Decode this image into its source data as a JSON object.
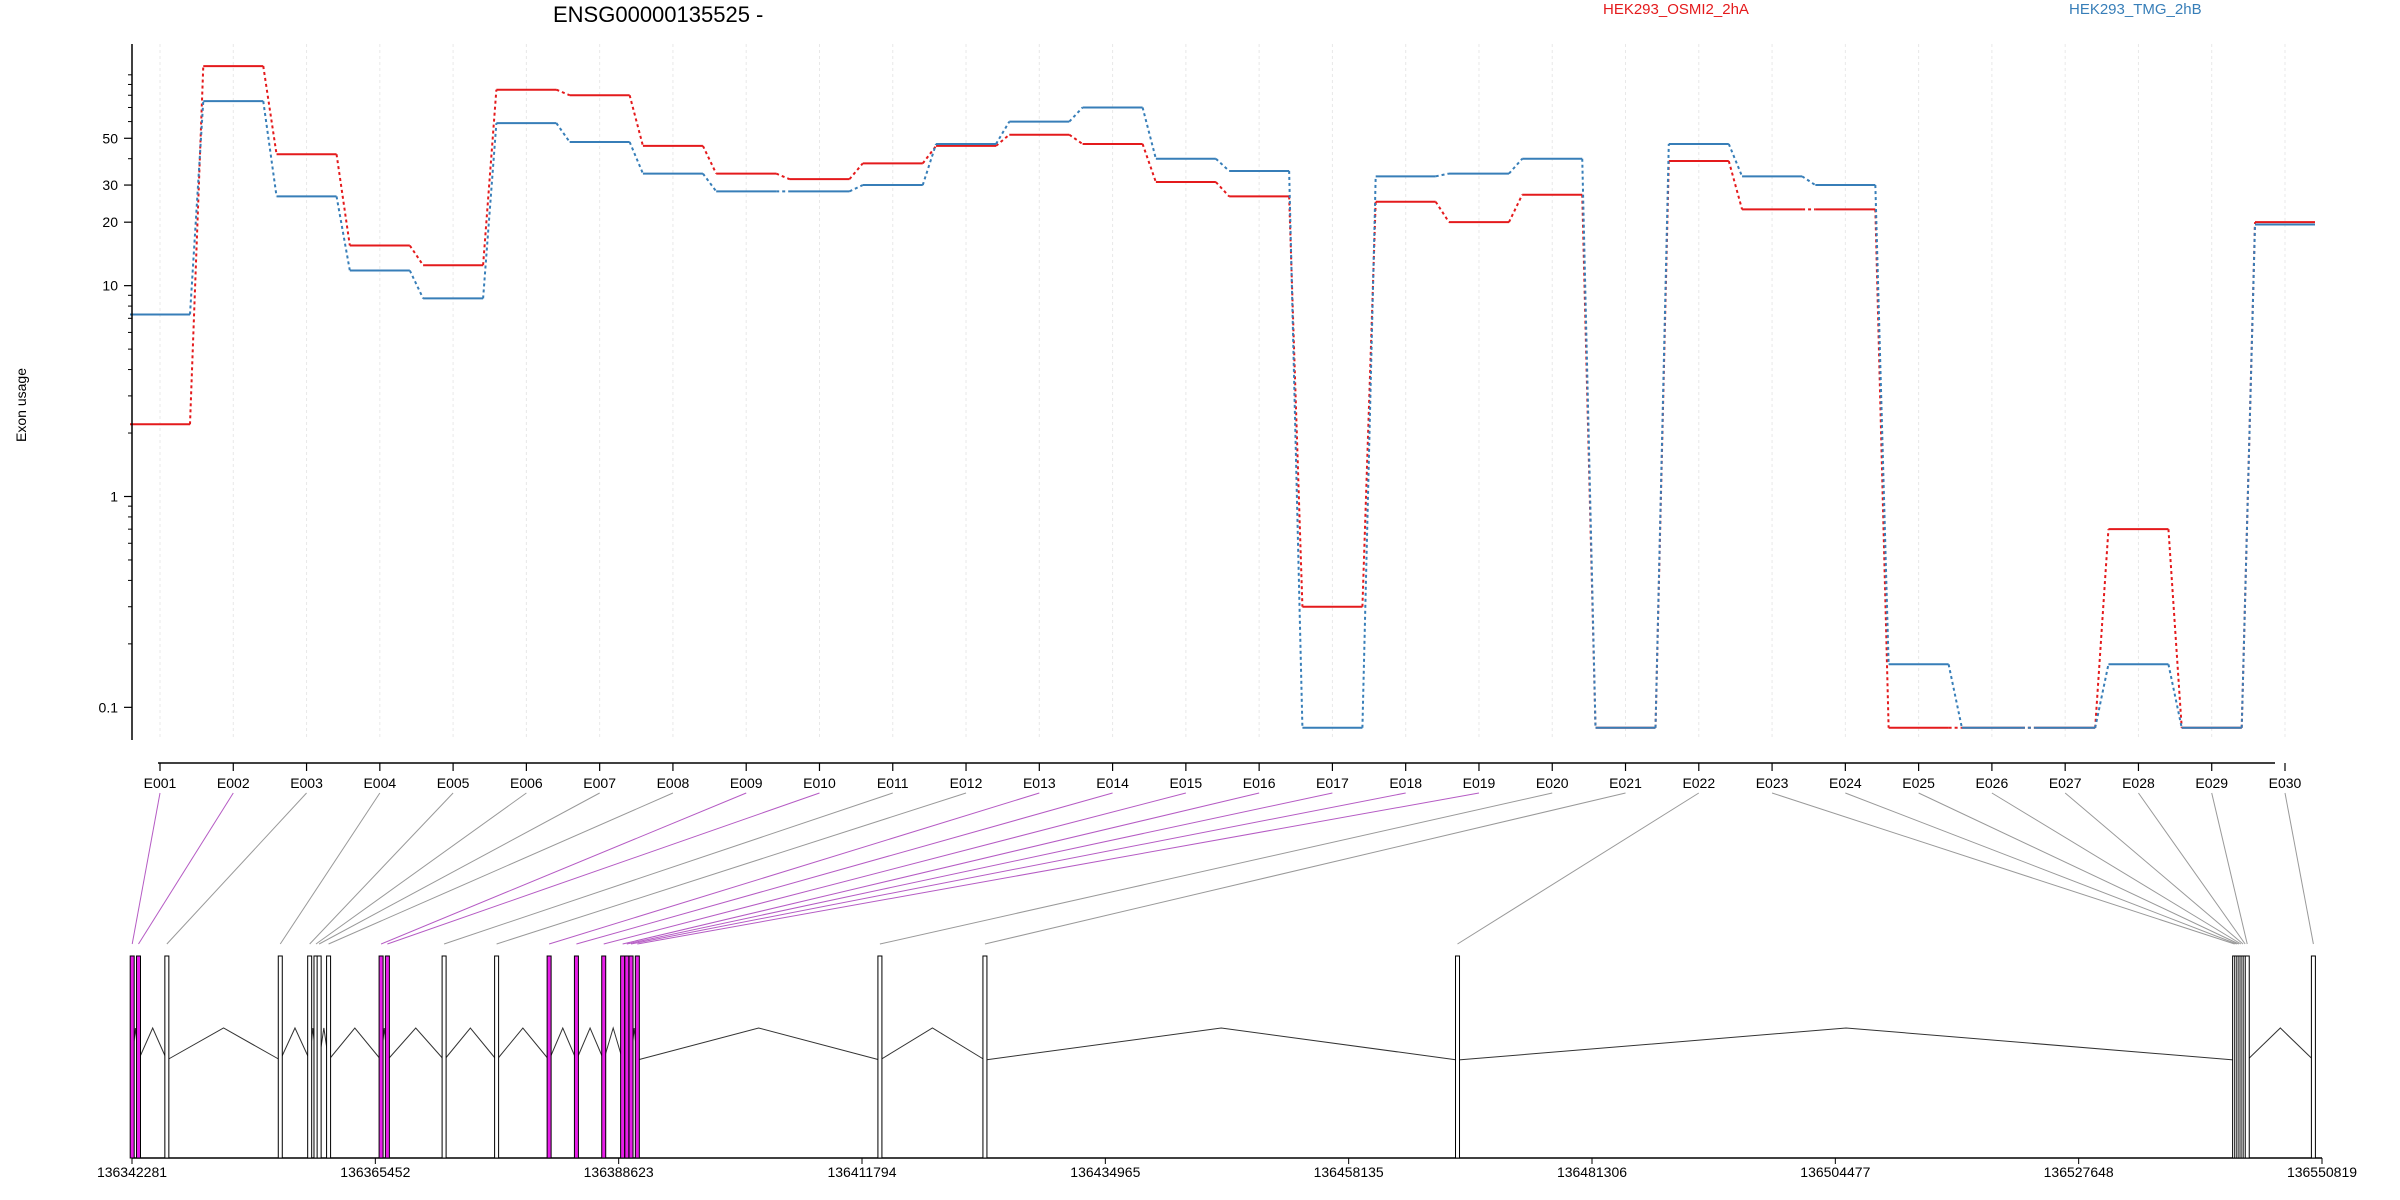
{
  "chart_data": {
    "type": "line",
    "title": "ENSG00000135525 -",
    "ylabel": "Exon usage",
    "yscale": "log",
    "ylim": [
      0.07,
      140
    ],
    "yticks": [
      0.1,
      1,
      10,
      20,
      30,
      50
    ],
    "ytick_labels": [
      "0.1",
      "1",
      "10",
      "20",
      "30",
      "50"
    ],
    "grid": "vertical",
    "legend_placement": "top",
    "categories": [
      "E001",
      "E002",
      "E003",
      "E004",
      "E005",
      "E006",
      "E007",
      "E008",
      "E009",
      "E010",
      "E011",
      "E012",
      "E013",
      "E014",
      "E015",
      "E016",
      "E017",
      "E018",
      "E019",
      "E020",
      "E021",
      "E022",
      "E023",
      "E024",
      "E025",
      "E026",
      "E027",
      "E028",
      "E029",
      "E030"
    ],
    "series": [
      {
        "name": "HEK293_OSMI2_2hA",
        "color": "#e41a1c",
        "values": [
          2.2,
          110,
          42,
          15.5,
          12.5,
          85,
          80,
          46,
          34,
          32,
          38,
          46,
          52,
          47,
          31,
          26.5,
          0.3,
          25,
          20,
          27,
          0.08,
          39,
          23,
          23,
          0.08,
          0.08,
          0.08,
          0.7,
          0.08,
          20
        ]
      },
      {
        "name": "HEK293_TMG_2hB",
        "color": "#377eb8",
        "values": [
          7.3,
          75,
          26.5,
          11.8,
          8.7,
          59,
          48,
          34,
          28,
          28,
          30,
          47,
          60,
          70,
          40,
          35,
          0.08,
          33,
          34,
          40,
          0.08,
          47,
          33,
          30,
          0.16,
          0.08,
          0.08,
          0.16,
          0.08,
          19.5
        ]
      }
    ],
    "genomic_axis": {
      "min": 136342281,
      "max": 136550819,
      "ticks": [
        136342281,
        136365452,
        136388623,
        136411794,
        136434965,
        136458135,
        136481306,
        136504477,
        136527648,
        136550819
      ],
      "tick_labels": [
        "136342281",
        "136365452",
        "136388623",
        "136411794",
        "136434965",
        "136458135",
        "136481306",
        "136504477",
        "136527648",
        "136550819"
      ]
    },
    "exon_positions": [
      136342300,
      136342900,
      136345600,
      136356400,
      136359200,
      136359800,
      136360100,
      136361000,
      136366000,
      136366600,
      136372000,
      136377000,
      136382000,
      136384600,
      136387200,
      136389000,
      136389400,
      136389800,
      136390400,
      136413500,
      136423500,
      136468500,
      136542500,
      136542700,
      136542900,
      136543100,
      136543300,
      136543500,
      136543700,
      136550000
    ],
    "exon_highlighted": [
      true,
      true,
      false,
      false,
      false,
      false,
      false,
      false,
      true,
      true,
      false,
      false,
      true,
      true,
      true,
      true,
      true,
      true,
      true,
      false,
      false,
      false,
      false,
      false,
      false,
      false,
      false,
      false,
      false,
      false
    ]
  }
}
